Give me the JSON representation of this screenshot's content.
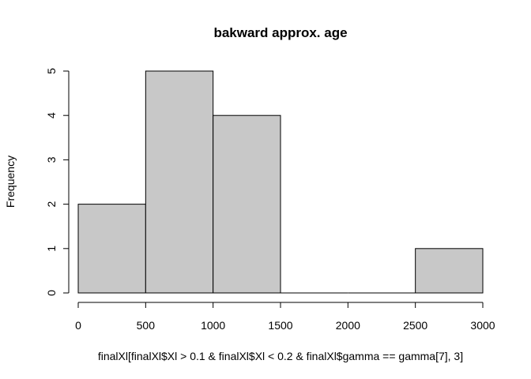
{
  "chart_data": {
    "type": "bar",
    "title": "bakward approx. age",
    "xlabel": "finalXl[finalXl$Xl > 0.1 & finalXl$Xl < 0.2 & finalXl$gamma == gamma[7], 3]",
    "ylabel": "Frequency",
    "bins": [
      {
        "from": 0,
        "to": 500,
        "count": 2
      },
      {
        "from": 500,
        "to": 1000,
        "count": 5
      },
      {
        "from": 1000,
        "to": 1500,
        "count": 4
      },
      {
        "from": 1500,
        "to": 2000,
        "count": 0
      },
      {
        "from": 2000,
        "to": 2500,
        "count": 0
      },
      {
        "from": 2500,
        "to": 3000,
        "count": 1
      }
    ],
    "xlim": [
      0,
      3000
    ],
    "ylim": [
      0,
      5
    ],
    "xticks": [
      0,
      500,
      1000,
      1500,
      2000,
      2500,
      3000
    ],
    "yticks": [
      0,
      1,
      2,
      3,
      4,
      5
    ],
    "bar_fill": "#c8c8c8",
    "grid": false
  }
}
